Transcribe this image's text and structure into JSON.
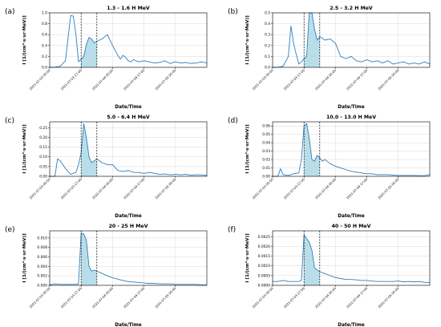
{
  "chart_data": [
    {
      "panel": "(a)",
      "type": "line",
      "title": "1.3 - 1.6 H MeV",
      "xlabel": "Date/Time",
      "ylabel": "I [1/(cm²·s·sr·MeV)]",
      "ylim": [
        0,
        1.0
      ],
      "yticks": [
        "0.0",
        "0.2",
        "0.4",
        "0.6",
        "0.8",
        "1.0"
      ],
      "xlim": [
        "2021-07-03 05:00",
        "2021-07-05 17:00"
      ],
      "xticks": [
        "2021-07-03 05:00",
        "2021-07-03 17:00",
        "2021-07-04 05:00",
        "2021-07-04 17:00",
        "2021-07-05 05:00"
      ],
      "shaded_interval": [
        "2021-07-03 17:00",
        "2021-07-03 23:00"
      ],
      "grid": true,
      "series": [
        {
          "x": [
            0,
            2,
            4,
            6,
            8,
            9,
            10,
            11,
            12,
            13,
            14,
            15,
            16,
            17,
            18,
            20,
            22,
            24,
            26,
            27,
            28,
            29,
            30,
            31,
            32,
            34,
            36,
            38,
            40,
            42,
            44,
            46,
            48,
            50,
            52,
            54,
            56,
            58,
            60
          ],
          "values": [
            0.0,
            0.0,
            0.02,
            0.12,
            0.95,
            0.94,
            0.6,
            0.1,
            0.15,
            0.2,
            0.42,
            0.55,
            0.52,
            0.45,
            0.48,
            0.52,
            0.6,
            0.4,
            0.22,
            0.15,
            0.22,
            0.18,
            0.12,
            0.1,
            0.14,
            0.1,
            0.12,
            0.1,
            0.08,
            0.09,
            0.12,
            0.07,
            0.1,
            0.08,
            0.09,
            0.07,
            0.08,
            0.1,
            0.08
          ]
        }
      ]
    },
    {
      "panel": "(b)",
      "type": "line",
      "title": "2.5 - 3.2 H MeV",
      "xlabel": "Date/Time",
      "ylabel": "I [1/(cm²·s·sr·MeV)]",
      "ylim": [
        0,
        0.5
      ],
      "yticks": [
        "0.0",
        "0.1",
        "0.2",
        "0.3",
        "0.4",
        "0.5"
      ],
      "xlim": [
        "2021-07-03 05:00",
        "2021-07-05 17:00"
      ],
      "xticks": [
        "2021-07-03 05:00",
        "2021-07-03 17:00",
        "2021-07-04 05:00",
        "2021-07-04 17:00",
        "2021-07-05 05:00"
      ],
      "shaded_interval": [
        "2021-07-03 17:00",
        "2021-07-03 23:00"
      ],
      "grid": true,
      "series": [
        {
          "x": [
            0,
            2,
            4,
            6,
            7,
            8,
            9,
            10,
            11,
            12,
            13,
            14,
            15,
            16,
            17,
            18,
            20,
            22,
            24,
            26,
            28,
            30,
            32,
            34,
            36,
            38,
            40,
            42,
            44,
            46,
            48,
            50,
            52,
            54,
            56,
            58,
            60
          ],
          "values": [
            0.0,
            0.0,
            0.01,
            0.1,
            0.38,
            0.22,
            0.12,
            0.03,
            0.05,
            0.08,
            0.1,
            0.5,
            0.5,
            0.35,
            0.25,
            0.28,
            0.25,
            0.26,
            0.22,
            0.1,
            0.08,
            0.1,
            0.06,
            0.05,
            0.07,
            0.05,
            0.06,
            0.04,
            0.06,
            0.03,
            0.04,
            0.05,
            0.03,
            0.04,
            0.03,
            0.05,
            0.03
          ]
        }
      ]
    },
    {
      "panel": "(c)",
      "type": "line",
      "title": "5.0 - 6.4 H MeV",
      "xlabel": "Date/Time",
      "ylabel": "I [1/(cm²·s·sr·MeV)]",
      "ylim": [
        0,
        0.28
      ],
      "yticks": [
        "0.00",
        "0.05",
        "0.10",
        "0.15",
        "0.20",
        "0.25"
      ],
      "xlim": [
        "2021-07-03 05:00",
        "2021-07-05 17:00"
      ],
      "xticks": [
        "2021-07-03 05:00",
        "2021-07-03 17:00",
        "2021-07-04 05:00",
        "2021-07-04 17:00",
        "2021-07-05 05:00"
      ],
      "shaded_interval": [
        "2021-07-03 17:00",
        "2021-07-03 23:00"
      ],
      "grid": true,
      "series": [
        {
          "x": [
            0,
            2,
            3,
            4,
            6,
            8,
            10,
            11,
            12,
            13,
            14,
            15,
            16,
            17,
            18,
            20,
            22,
            24,
            26,
            28,
            30,
            32,
            34,
            36,
            38,
            40,
            42,
            44,
            46,
            48,
            50,
            52,
            54,
            56,
            58,
            60
          ],
          "values": [
            0.0,
            0.0,
            0.09,
            0.08,
            0.04,
            0.01,
            0.02,
            0.06,
            0.12,
            0.27,
            0.2,
            0.1,
            0.07,
            0.08,
            0.09,
            0.07,
            0.06,
            0.06,
            0.03,
            0.025,
            0.03,
            0.02,
            0.02,
            0.015,
            0.02,
            0.015,
            0.01,
            0.012,
            0.008,
            0.01,
            0.008,
            0.01,
            0.006,
            0.008,
            0.007,
            0.005
          ]
        }
      ]
    },
    {
      "panel": "(d)",
      "type": "line",
      "title": "10.0 - 13.0 H MeV",
      "xlabel": "Date/Time",
      "ylabel": "I [1/(cm²·s·sr·MeV)]",
      "ylim": [
        0,
        0.065
      ],
      "yticks": [
        "0.00",
        "0.01",
        "0.02",
        "0.03",
        "0.04",
        "0.05",
        "0.06"
      ],
      "xlim": [
        "2021-07-03 05:00",
        "2021-07-05 17:00"
      ],
      "xticks": [
        "2021-07-03 05:00",
        "2021-07-03 17:00",
        "2021-07-04 05:00",
        "2021-07-04 17:00",
        "2021-07-05 05:00"
      ],
      "shaded_interval": [
        "2021-07-03 17:00",
        "2021-07-03 23:00"
      ],
      "grid": true,
      "series": [
        {
          "x": [
            0,
            2,
            3,
            4,
            6,
            8,
            10,
            11,
            12,
            13,
            14,
            15,
            16,
            17,
            18,
            19,
            20,
            22,
            24,
            26,
            28,
            30,
            32,
            34,
            36,
            38,
            40,
            42,
            44,
            46,
            48,
            50,
            52,
            54,
            56,
            58,
            60
          ],
          "values": [
            0.0,
            0.0,
            0.009,
            0.002,
            0.001,
            0.003,
            0.004,
            0.02,
            0.06,
            0.063,
            0.045,
            0.02,
            0.018,
            0.025,
            0.022,
            0.018,
            0.02,
            0.015,
            0.012,
            0.01,
            0.008,
            0.006,
            0.005,
            0.004,
            0.003,
            0.003,
            0.002,
            0.002,
            0.002,
            0.0015,
            0.001,
            0.001,
            0.001,
            0.001,
            0.0008,
            0.0008,
            0.002
          ]
        }
      ]
    },
    {
      "panel": "(e)",
      "type": "line",
      "title": "20 - 25 H MeV",
      "xlabel": "Date/Time",
      "ylabel": "I [1/(cm²·s·sr·MeV)]",
      "ylim": [
        0,
        0.0115
      ],
      "yticks": [
        "0.000",
        "0.002",
        "0.004",
        "0.006",
        "0.008",
        "0.010"
      ],
      "xlim": [
        "2021-07-03 05:00",
        "2021-07-05 17:00"
      ],
      "xticks": [
        "2021-07-03 05:00",
        "2021-07-03 17:00",
        "2021-07-04 05:00",
        "2021-07-04 17:00",
        "2021-07-05 05:00"
      ],
      "shaded_interval": [
        "2021-07-03 17:00",
        "2021-07-03 23:00"
      ],
      "grid": true,
      "series": [
        {
          "x": [
            0,
            2,
            4,
            6,
            8,
            10,
            11,
            12,
            13,
            14,
            15,
            16,
            17,
            18,
            20,
            22,
            24,
            26,
            28,
            30,
            32,
            34,
            36,
            38,
            40,
            42,
            44,
            46,
            48,
            50,
            52,
            54,
            56,
            58,
            60
          ],
          "values": [
            0.0001,
            0.0003,
            0.0002,
            0.0002,
            0.0002,
            0.0002,
            0.0003,
            0.011,
            0.0108,
            0.0095,
            0.004,
            0.003,
            0.0032,
            0.003,
            0.0025,
            0.002,
            0.0016,
            0.0013,
            0.001,
            0.0008,
            0.0007,
            0.0006,
            0.0005,
            0.0004,
            0.0004,
            0.0003,
            0.0003,
            0.0003,
            0.0002,
            0.0002,
            0.0002,
            0.0002,
            0.0002,
            0.0001,
            0.0001
          ]
        }
      ]
    },
    {
      "panel": "(f)",
      "type": "line",
      "title": "40 - 50 H MeV",
      "xlabel": "Date/Time",
      "ylabel": "I [1/(cm²·s·sr·MeV)]",
      "ylim": [
        0,
        0.0028
      ],
      "yticks": [
        "0.0000",
        "0.0005",
        "0.0010",
        "0.0015",
        "0.0020",
        "0.0025"
      ],
      "xlim": [
        "2021-07-03 05:00",
        "2021-07-05 17:00"
      ],
      "xticks": [
        "2021-07-03 05:00",
        "2021-07-03 17:00",
        "2021-07-04 05:00",
        "2021-07-04 17:00",
        "2021-07-05 05:00"
      ],
      "shaded_interval": [
        "2021-07-03 17:00",
        "2021-07-03 23:00"
      ],
      "grid": true,
      "series": [
        {
          "x": [
            0,
            2,
            4,
            6,
            8,
            10,
            11,
            12,
            13,
            14,
            15,
            16,
            17,
            18,
            20,
            22,
            24,
            26,
            28,
            30,
            32,
            34,
            36,
            38,
            40,
            42,
            44,
            46,
            48,
            50,
            52,
            54,
            56,
            58,
            60
          ],
          "values": [
            0.0002,
            0.0002,
            0.00025,
            0.0002,
            0.0002,
            0.0002,
            0.00025,
            0.0026,
            0.0024,
            0.0022,
            0.0018,
            0.0009,
            0.0008,
            0.0007,
            0.0006,
            0.0005,
            0.0004,
            0.00035,
            0.0003,
            0.0003,
            0.00028,
            0.00025,
            0.00025,
            0.00022,
            0.0002,
            0.0002,
            0.0002,
            0.0002,
            0.00022,
            0.00018,
            0.0002,
            0.00018,
            0.0002,
            0.00015,
            0.00015
          ]
        }
      ]
    }
  ],
  "colors": {
    "line": "#2f7fbf",
    "fill": "#add8e6",
    "grid": "#d9d9d9",
    "vline": "#000000"
  }
}
